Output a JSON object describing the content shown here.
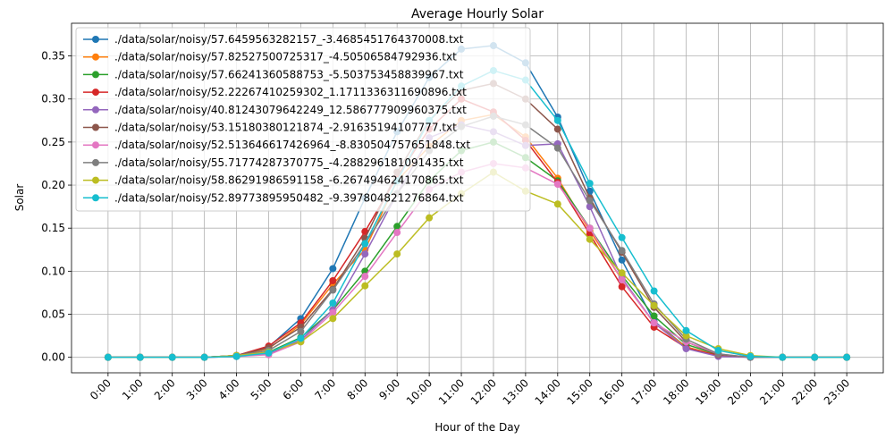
{
  "chart_data": {
    "type": "line",
    "title": "Average Hourly Solar",
    "xlabel": "Hour of the Day",
    "ylabel": "Solar",
    "categories": [
      "0:00",
      "1:00",
      "2:00",
      "3:00",
      "4:00",
      "5:00",
      "6:00",
      "7:00",
      "8:00",
      "9:00",
      "10:00",
      "11:00",
      "12:00",
      "13:00",
      "14:00",
      "15:00",
      "16:00",
      "17:00",
      "18:00",
      "19:00",
      "20:00",
      "21:00",
      "22:00",
      "23:00"
    ],
    "ylim": [
      -0.018,
      0.388
    ],
    "yticks": [
      0.0,
      0.05,
      0.1,
      0.15,
      0.2,
      0.25,
      0.3,
      0.35
    ],
    "ytick_labels": [
      "0.00",
      "0.05",
      "0.10",
      "0.15",
      "0.20",
      "0.25",
      "0.30",
      "0.35"
    ],
    "grid": true,
    "legend_position": "top-left",
    "series": [
      {
        "name": "./data/solar/noisy/57.6459563282157_-3.4685451764370008.txt",
        "color": "#1f77b4",
        "values": [
          0,
          0,
          0,
          0,
          0.002,
          0.012,
          0.045,
          0.103,
          0.185,
          0.262,
          0.325,
          0.358,
          0.362,
          0.342,
          0.279,
          0.193,
          0.113,
          0.042,
          0.012,
          0.002,
          0,
          0,
          0,
          0
        ]
      },
      {
        "name": "./data/solar/noisy/57.82527500725317_-4.50506584792936.txt",
        "color": "#ff7f0e",
        "values": [
          0,
          0,
          0,
          0,
          0.002,
          0.01,
          0.038,
          0.085,
          0.125,
          0.205,
          0.245,
          0.275,
          0.282,
          0.256,
          0.208,
          0.147,
          0.09,
          0.04,
          0.012,
          0.002,
          0,
          0,
          0,
          0
        ]
      },
      {
        "name": "./data/solar/noisy/57.66241360588753_-5.503753458839967.txt",
        "color": "#2ca02c",
        "values": [
          0,
          0,
          0,
          0,
          0.001,
          0.006,
          0.023,
          0.055,
          0.1,
          0.152,
          0.205,
          0.24,
          0.25,
          0.232,
          0.205,
          0.15,
          0.095,
          0.048,
          0.015,
          0.003,
          0,
          0,
          0,
          0
        ]
      },
      {
        "name": "./data/solar/noisy/52.22267410259302_1.1711336311690896.txt",
        "color": "#d62728",
        "values": [
          0,
          0,
          0,
          0,
          0.002,
          0.013,
          0.04,
          0.089,
          0.146,
          0.21,
          0.265,
          0.3,
          0.285,
          0.252,
          0.203,
          0.143,
          0.082,
          0.035,
          0.011,
          0.002,
          0,
          0,
          0,
          0
        ]
      },
      {
        "name": "./data/solar/noisy/40.81243079642249_12.586777909960375.txt",
        "color": "#9467bd",
        "values": [
          0,
          0,
          0,
          0,
          0.001,
          0.004,
          0.02,
          0.055,
          0.12,
          0.19,
          0.255,
          0.27,
          0.262,
          0.246,
          0.248,
          0.175,
          0.092,
          0.04,
          0.01,
          0.001,
          0,
          0,
          0,
          0
        ]
      },
      {
        "name": "./data/solar/noisy/53.15180380121874_-2.91635194107777.txt",
        "color": "#8c564b",
        "values": [
          0,
          0,
          0,
          0,
          0.002,
          0.011,
          0.035,
          0.079,
          0.138,
          0.215,
          0.275,
          0.31,
          0.318,
          0.3,
          0.265,
          0.185,
          0.122,
          0.058,
          0.018,
          0.003,
          0,
          0,
          0,
          0
        ]
      },
      {
        "name": "./data/solar/noisy/52.513646617426964_-8.830504757651848.txt",
        "color": "#e377c2",
        "values": [
          0,
          0,
          0,
          0,
          0.001,
          0.003,
          0.018,
          0.052,
          0.094,
          0.145,
          0.195,
          0.215,
          0.225,
          0.22,
          0.201,
          0.15,
          0.09,
          0.04,
          0.018,
          0.004,
          0,
          0,
          0,
          0
        ]
      },
      {
        "name": "./data/solar/noisy/55.71774287370775_-4.288296181091435.txt",
        "color": "#7f7f7f",
        "values": [
          0,
          0,
          0,
          0,
          0.002,
          0.008,
          0.03,
          0.078,
          0.132,
          0.19,
          0.24,
          0.268,
          0.28,
          0.27,
          0.243,
          0.182,
          0.124,
          0.062,
          0.021,
          0.004,
          0,
          0,
          0,
          0
        ]
      },
      {
        "name": "./data/solar/noisy/58.86291986591158_-6.267494624170865.txt",
        "color": "#bcbd22",
        "values": [
          0,
          0,
          0,
          0,
          0.002,
          0.006,
          0.018,
          0.045,
          0.083,
          0.12,
          0.162,
          0.19,
          0.215,
          0.193,
          0.178,
          0.137,
          0.098,
          0.06,
          0.025,
          0.01,
          0.002,
          0,
          0,
          0
        ]
      },
      {
        "name": "./data/solar/noisy/52.89773895950482_-9.397804821276864.txt",
        "color": "#17becf",
        "values": [
          0,
          0,
          0,
          0,
          0.001,
          0.005,
          0.022,
          0.063,
          0.132,
          0.205,
          0.275,
          0.315,
          0.333,
          0.322,
          0.275,
          0.202,
          0.139,
          0.077,
          0.031,
          0.008,
          0.001,
          0,
          0,
          0
        ]
      }
    ]
  }
}
